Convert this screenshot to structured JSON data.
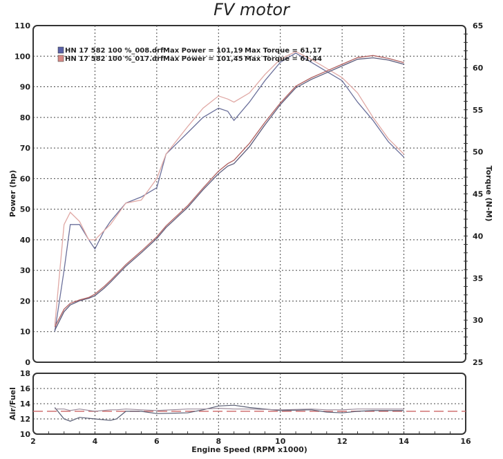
{
  "chart_data": [
    {
      "type": "line",
      "title": "FV motor",
      "xlabel": "Engine Speed (RPM x1000)",
      "ylabel": "Power (hp)",
      "y2label": "Torque (N-M)",
      "xlim": [
        2,
        16
      ],
      "ylim": [
        0,
        110
      ],
      "y2lim": [
        25,
        65
      ],
      "xticks": [
        2,
        4,
        6,
        8,
        10,
        12,
        14,
        16
      ],
      "yticks": [
        0,
        10,
        20,
        30,
        40,
        50,
        60,
        70,
        80,
        90,
        100,
        110
      ],
      "y2ticks": [
        25,
        30,
        35,
        40,
        45,
        50,
        55,
        60,
        65
      ],
      "grid": true,
      "legend_position": "top-left",
      "legend": [
        {
          "file": "HN 17 582 100 %_008.drf",
          "power": "Max Power = 101,19",
          "torque": "Max Torque = 61,17",
          "color": "#5a62a8"
        },
        {
          "file": "HN 17 582 100 %_017.drf",
          "power": "Max Power = 101,45",
          "torque": "Max Torque = 61,44",
          "color": "#d88a86"
        }
      ],
      "x": [
        2.7,
        3.0,
        3.2,
        3.5,
        3.8,
        4.0,
        4.3,
        4.5,
        5.0,
        5.5,
        6.0,
        6.3,
        7.0,
        7.5,
        8.0,
        8.3,
        8.5,
        9.0,
        9.5,
        10.0,
        10.5,
        11.0,
        11.5,
        12.0,
        12.5,
        13.0,
        13.5,
        14.0
      ],
      "series": [
        {
          "run": "008",
          "quantity": "power",
          "axis": "left",
          "color": "#6a6f9a",
          "values": [
            10,
            30,
            45,
            45,
            40,
            37,
            43,
            46,
            52,
            54,
            57,
            68,
            75,
            80,
            83,
            82,
            79,
            85,
            92,
            98,
            101,
            98,
            95,
            92,
            85,
            79,
            72,
            67
          ]
        },
        {
          "run": "017",
          "quantity": "power",
          "axis": "left",
          "color": "#e0a8a4",
          "values": [
            12,
            45,
            49,
            46,
            40,
            40,
            43,
            45,
            52,
            53,
            60,
            68,
            77,
            83,
            87,
            86,
            85,
            88,
            94,
            99,
            101.5,
            99,
            96,
            93,
            88,
            80,
            73,
            68
          ]
        },
        {
          "run": "008",
          "quantity": "torque",
          "axis": "right",
          "color": "#5a5a7a",
          "values": [
            28.8,
            31.0,
            31.8,
            32.3,
            32.6,
            32.9,
            33.8,
            34.5,
            36.4,
            38.0,
            39.7,
            41.0,
            43.4,
            45.5,
            47.4,
            48.3,
            48.6,
            50.6,
            53.2,
            55.6,
            57.6,
            58.6,
            59.4,
            60.2,
            61.0,
            61.17,
            60.9,
            60.4
          ]
        },
        {
          "run": "017",
          "quantity": "torque",
          "axis": "right",
          "color": "#b06060",
          "values": [
            29.2,
            31.3,
            32.0,
            32.4,
            32.7,
            33.1,
            34.0,
            34.7,
            36.6,
            38.2,
            39.9,
            41.2,
            43.6,
            45.7,
            47.7,
            48.6,
            49.0,
            51.0,
            53.5,
            55.8,
            57.8,
            58.8,
            59.6,
            60.4,
            61.2,
            61.44,
            61.1,
            60.6
          ]
        }
      ]
    },
    {
      "type": "line",
      "xlabel": "Engine Speed (RPM x1000)",
      "ylabel": "Air/Fuel",
      "xlim": [
        2,
        16
      ],
      "ylim": [
        10,
        18
      ],
      "xticks": [
        2,
        4,
        6,
        8,
        10,
        12,
        14,
        16
      ],
      "yticks": [
        10,
        12,
        14,
        16,
        18
      ],
      "grid": true,
      "reference_line": {
        "value": 13,
        "style": "dashed",
        "color": "#d07070"
      },
      "x": [
        2.7,
        3.0,
        3.2,
        3.5,
        4.0,
        4.5,
        4.7,
        5.0,
        5.5,
        6.0,
        7.0,
        7.5,
        8.0,
        8.5,
        9.0,
        10.0,
        11.0,
        11.5,
        12.0,
        12.5,
        13.0,
        14.0
      ],
      "series": [
        {
          "run": "008",
          "color": "#555a70",
          "values": [
            13.5,
            12.0,
            11.7,
            12.2,
            12.0,
            11.8,
            12.0,
            13.0,
            13.0,
            12.7,
            12.8,
            13.2,
            13.7,
            13.8,
            13.5,
            13.1,
            13.2,
            12.9,
            12.8,
            13.0,
            13.1,
            13.1
          ]
        },
        {
          "run": "017",
          "color": "#9a8a9a",
          "values": [
            13.3,
            13.3,
            13.1,
            13.3,
            13.0,
            13.2,
            13.2,
            13.3,
            13.2,
            13.1,
            13.3,
            13.3,
            13.4,
            13.3,
            13.3,
            13.2,
            13.3,
            13.2,
            13.2,
            13.3,
            13.3,
            13.3
          ]
        }
      ]
    }
  ]
}
